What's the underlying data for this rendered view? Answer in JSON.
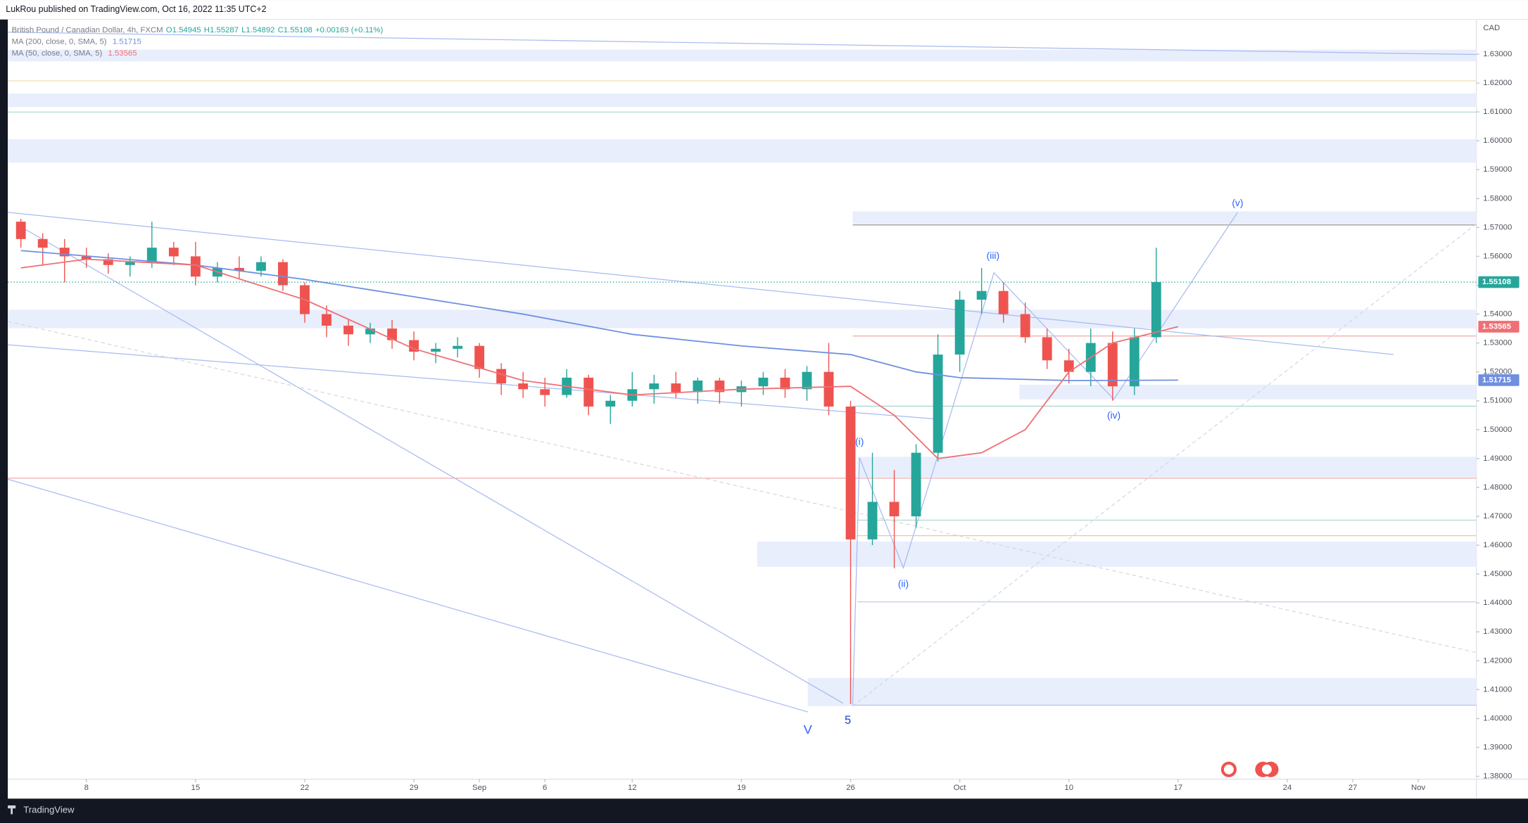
{
  "header": {
    "publisher": "LukRou published on TradingView.com, Oct 16, 2022 11:35 UTC+2"
  },
  "footer": {
    "brand": "TradingView"
  },
  "chart_data": {
    "type": "candlestick",
    "title": "British Pound / Canadian Dollar, 4h, FXCM",
    "ohlc_legend": [
      "O1.54945",
      "H1.55287",
      "L1.54892",
      "C1.55108",
      "+0.00163 (+0.11%)"
    ],
    "currency": "CAD",
    "up_color": "#26a69a",
    "down_color": "#ef5350",
    "x": [
      -3,
      -2,
      -1,
      0,
      1,
      2,
      3,
      4,
      5,
      6,
      7,
      8,
      9,
      10,
      11,
      12,
      13,
      14,
      15,
      16,
      17,
      18,
      19,
      20,
      21,
      22,
      23,
      24,
      25,
      26,
      27,
      28,
      29,
      30,
      31,
      32,
      33,
      34,
      35,
      36,
      37,
      38,
      39,
      40,
      41,
      42,
      43,
      44,
      45,
      46,
      47,
      48,
      49
    ],
    "open": [
      1.572,
      1.566,
      1.563,
      1.56,
      1.559,
      1.557,
      1.558,
      1.563,
      1.56,
      1.553,
      1.556,
      1.555,
      1.558,
      1.55,
      1.54,
      1.536,
      1.533,
      1.535,
      1.531,
      1.527,
      1.528,
      1.529,
      1.521,
      1.516,
      1.514,
      1.512,
      1.518,
      1.508,
      1.51,
      1.514,
      1.516,
      1.513,
      1.517,
      1.513,
      1.515,
      1.518,
      1.514,
      1.52,
      1.508,
      1.462,
      1.475,
      1.47,
      1.492,
      1.526,
      1.545,
      1.548,
      1.54,
      1.532,
      1.524,
      1.52,
      1.53,
      1.515,
      1.532
    ],
    "high": [
      1.573,
      1.568,
      1.566,
      1.563,
      1.561,
      1.56,
      1.572,
      1.565,
      1.565,
      1.558,
      1.56,
      1.56,
      1.559,
      1.551,
      1.543,
      1.538,
      1.537,
      1.538,
      1.534,
      1.53,
      1.532,
      1.53,
      1.523,
      1.52,
      1.518,
      1.521,
      1.519,
      1.512,
      1.52,
      1.519,
      1.52,
      1.518,
      1.518,
      1.517,
      1.52,
      1.521,
      1.522,
      1.53,
      1.51,
      1.492,
      1.486,
      1.495,
      1.533,
      1.548,
      1.556,
      1.551,
      1.544,
      1.535,
      1.528,
      1.535,
      1.534,
      1.535,
      1.563
    ],
    "low": [
      1.563,
      1.557,
      1.551,
      1.556,
      1.554,
      1.553,
      1.556,
      1.557,
      1.55,
      1.551,
      1.552,
      1.553,
      1.548,
      1.537,
      1.532,
      1.529,
      1.53,
      1.528,
      1.524,
      1.523,
      1.525,
      1.518,
      1.512,
      1.511,
      1.508,
      1.511,
      1.505,
      1.502,
      1.508,
      1.509,
      1.511,
      1.509,
      1.509,
      1.508,
      1.512,
      1.511,
      1.51,
      1.505,
      1.405,
      1.46,
      1.452,
      1.466,
      1.489,
      1.52,
      1.54,
      1.537,
      1.53,
      1.521,
      1.516,
      1.515,
      1.51,
      1.512,
      1.53
    ],
    "close": [
      1.566,
      1.563,
      1.56,
      1.559,
      1.557,
      1.558,
      1.563,
      1.56,
      1.553,
      1.556,
      1.555,
      1.558,
      1.55,
      1.54,
      1.536,
      1.533,
      1.535,
      1.531,
      1.527,
      1.528,
      1.529,
      1.521,
      1.516,
      1.514,
      1.512,
      1.518,
      1.508,
      1.51,
      1.514,
      1.516,
      1.513,
      1.517,
      1.513,
      1.515,
      1.518,
      1.514,
      1.52,
      1.508,
      1.462,
      1.475,
      1.47,
      1.492,
      1.526,
      1.545,
      1.548,
      1.54,
      1.532,
      1.524,
      1.52,
      1.53,
      1.515,
      1.532,
      1.55108
    ],
    "series": [
      {
        "name": "MA (200, close, 0, SMA, 5)",
        "color": "#6f8fe0",
        "x": [
          -3,
          5,
          10,
          15,
          20,
          25,
          30,
          35,
          38,
          40,
          45,
          50
        ],
        "values": [
          1.562,
          1.557,
          1.552,
          1.546,
          1.54,
          1.533,
          1.529,
          1.526,
          1.52,
          1.518,
          1.517,
          1.51715
        ]
      },
      {
        "name": "MA (50, close, 0, SMA, 5)",
        "color": "#ef6f74",
        "x": [
          -3,
          0,
          5,
          10,
          15,
          20,
          25,
          30,
          35,
          37,
          39,
          41,
          43,
          45,
          47,
          50
        ],
        "values": [
          1.556,
          1.559,
          1.557,
          1.545,
          1.528,
          1.517,
          1.512,
          1.514,
          1.515,
          1.505,
          1.49,
          1.492,
          1.5,
          1.52,
          1.53,
          1.53565
        ]
      }
    ],
    "annotations": [
      "(i)",
      "(ii)",
      "(iii)",
      "(iv)",
      "(v)",
      "V",
      "5"
    ],
    "xlim": [
      -3.6,
      63.66
    ],
    "xticks": [
      {
        "value": 0,
        "label": "8"
      },
      {
        "value": 5,
        "label": "15"
      },
      {
        "value": 10,
        "label": "22"
      },
      {
        "value": 15,
        "label": "29"
      },
      {
        "value": 18,
        "label": "Sep"
      },
      {
        "value": 21,
        "label": "6"
      },
      {
        "value": 25,
        "label": "12"
      },
      {
        "value": 30,
        "label": "19"
      },
      {
        "value": 35,
        "label": "26"
      },
      {
        "value": 40,
        "label": "Oct"
      },
      {
        "value": 45,
        "label": "10"
      },
      {
        "value": 50,
        "label": "17"
      },
      {
        "value": 55,
        "label": "24"
      },
      {
        "value": 58,
        "label": "27"
      },
      {
        "value": 61,
        "label": "Nov"
      }
    ],
    "ylim": [
      1.379,
      1.642
    ],
    "yticks": [
      {
        "value": 1.38,
        "label": "1.38000"
      },
      {
        "value": 1.39,
        "label": "1.39000"
      },
      {
        "value": 1.4,
        "label": "1.40000"
      },
      {
        "value": 1.41,
        "label": "1.41000"
      },
      {
        "value": 1.42,
        "label": "1.42000"
      },
      {
        "value": 1.43,
        "label": "1.43000"
      },
      {
        "value": 1.44,
        "label": "1.44000"
      },
      {
        "value": 1.45,
        "label": "1.45000"
      },
      {
        "value": 1.46,
        "label": "1.46000"
      },
      {
        "value": 1.47,
        "label": "1.47000"
      },
      {
        "value": 1.48,
        "label": "1.48000"
      },
      {
        "value": 1.49,
        "label": "1.49000"
      },
      {
        "value": 1.5,
        "label": "1.50000"
      },
      {
        "value": 1.51,
        "label": "1.51000"
      },
      {
        "value": 1.52,
        "label": "1.52000"
      },
      {
        "value": 1.53,
        "label": "1.53000"
      },
      {
        "value": 1.54,
        "label": "1.54000"
      },
      {
        "value": 1.55,
        "label": "1.55000"
      },
      {
        "value": 1.56,
        "label": "1.56000"
      },
      {
        "value": 1.57,
        "label": "1.57000"
      },
      {
        "value": 1.58,
        "label": "1.58000"
      },
      {
        "value": 1.59,
        "label": "1.59000"
      },
      {
        "value": 1.6,
        "label": "1.60000"
      },
      {
        "value": 1.61,
        "label": "1.61000"
      },
      {
        "value": 1.62,
        "label": "1.62000"
      },
      {
        "value": 1.63,
        "label": "1.63000"
      }
    ]
  }
}
